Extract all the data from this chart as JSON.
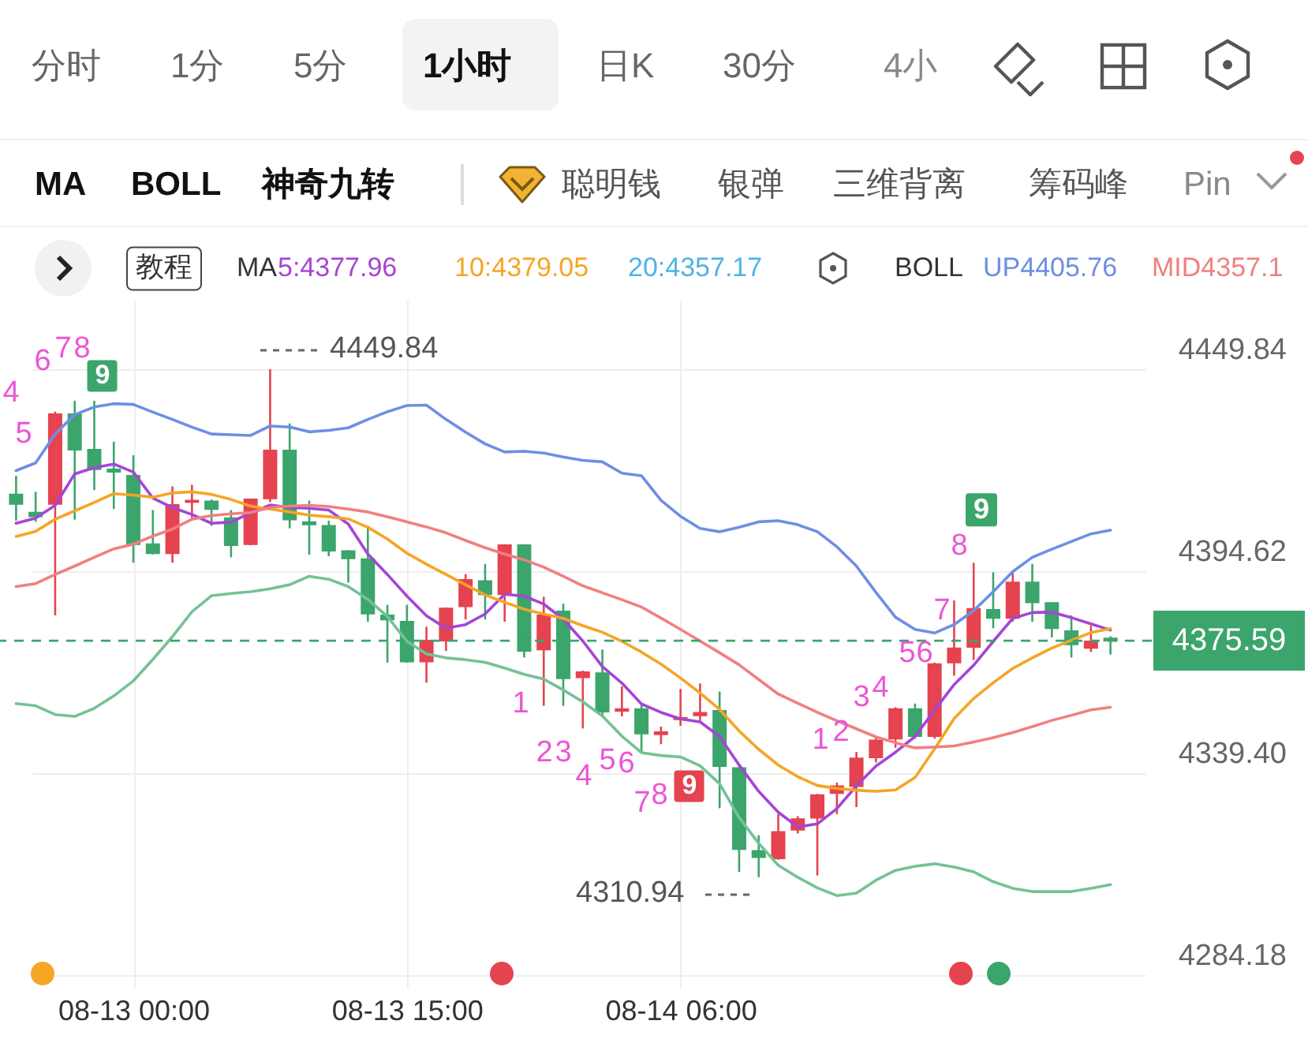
{
  "chart_data": {
    "type": "candlestick",
    "categories": [
      null,
      null,
      null,
      null,
      null,
      null,
      "08-13 00:00",
      null,
      null,
      null,
      null,
      null,
      null,
      null,
      null,
      null,
      null,
      null,
      null,
      null,
      "08-13 15:00",
      null,
      null,
      null,
      null,
      null,
      null,
      null,
      null,
      null,
      null,
      null,
      null,
      null,
      "08-14 06:00",
      null,
      null,
      null,
      null,
      null,
      null,
      null,
      null,
      null,
      null,
      null,
      null,
      null,
      null,
      null,
      null,
      null,
      null,
      null,
      null,
      null,
      null
    ],
    "ohlc": [
      [
        4415.6,
        4420.7,
        4408.4,
        4413.0
      ],
      [
        4410.6,
        4416.3,
        4408.1,
        4409.6
      ],
      [
        4413.0,
        4438.2,
        4382.5,
        4437.5
      ],
      [
        4437.5,
        4441.2,
        4408.7,
        4427.8
      ],
      [
        4427.8,
        4441.2,
        4416.8,
        4422.5
      ],
      [
        4422.4,
        4430.0,
        4411.6,
        4421.8
      ],
      [
        4420.7,
        4426.3,
        4396.9,
        4402.0
      ],
      [
        4402.0,
        4411.3,
        4399.2,
        4399.5
      ],
      [
        4399.5,
        4417.8,
        4396.9,
        4412.7
      ],
      [
        4413.5,
        4418.2,
        4409.1,
        4413.9
      ],
      [
        4413.7,
        4414.2,
        4407.0,
        4411.6
      ],
      [
        4409.1,
        4411.3,
        4398.4,
        4401.7
      ],
      [
        4402.0,
        4414.5,
        4401.7,
        4414.2
      ],
      [
        4414.5,
        4449.84,
        4413.5,
        4427.6
      ],
      [
        4427.6,
        4435.0,
        4406.3,
        4408.7
      ],
      [
        4408.0,
        4413.9,
        4399.1,
        4407.4
      ],
      [
        4407.0,
        4408.4,
        4398.7,
        4400.2
      ],
      [
        4400.1,
        4400.4,
        4391.5,
        4398.1
      ],
      [
        4397.9,
        4407.0,
        4380.8,
        4383.0
      ],
      [
        4382.5,
        4385.4,
        4369.6,
        4381.4
      ],
      [
        4380.8,
        4385.4,
        4369.6,
        4369.9
      ],
      [
        4369.9,
        4379.4,
        4364.1,
        4375.6
      ],
      [
        4375.6,
        4384.7,
        4372.8,
        4384.4
      ],
      [
        4385.0,
        4393.8,
        4381.4,
        4392.2
      ],
      [
        4391.9,
        4396.6,
        4381.4,
        4388.3
      ],
      [
        4388.3,
        4402.0,
        4380.8,
        4401.7
      ],
      [
        4401.7,
        4402.0,
        4371.0,
        4372.8
      ],
      [
        4373.2,
        4387.6,
        4357.8,
        4382.5
      ],
      [
        4383.6,
        4385.7,
        4357.8,
        4365.3
      ],
      [
        4365.6,
        4367.4,
        4351.6,
        4367.0
      ],
      [
        4366.7,
        4373.2,
        4355.2,
        4356.2
      ],
      [
        4356.4,
        4363.1,
        4354.9,
        4356.9
      ],
      [
        4356.9,
        4358.1,
        4344.9,
        4350.2
      ],
      [
        4350.0,
        4352.1,
        4347.3,
        4350.6
      ],
      [
        4354.1,
        4362.4,
        4352.3,
        4354.5
      ],
      [
        4355.2,
        4363.9,
        4353.1,
        4355.9
      ],
      [
        4356.4,
        4361.7,
        4329.8,
        4341.3
      ],
      [
        4340.8,
        4341.1,
        4312.4,
        4318.6
      ],
      [
        4318.1,
        4322.4,
        4310.94,
        4316.4
      ],
      [
        4316.1,
        4328.2,
        4315.7,
        4323.3
      ],
      [
        4323.9,
        4327.6,
        4322.9,
        4326.8
      ],
      [
        4327.2,
        4333.7,
        4311.4,
        4333.4
      ],
      [
        4333.9,
        4336.8,
        4328.2,
        4335.8
      ],
      [
        4335.8,
        4345.2,
        4330.1,
        4343.4
      ],
      [
        4343.7,
        4349.5,
        4342.3,
        4348.3
      ],
      [
        4348.8,
        4357.4,
        4346.3,
        4356.9
      ],
      [
        4356.9,
        4358.4,
        4348.8,
        4349.5
      ],
      [
        4349.5,
        4369.6,
        4348.8,
        4369.2
      ],
      [
        4369.6,
        4386.6,
        4366.0,
        4373.5
      ],
      [
        4373.9,
        4396.9,
        4370.3,
        4384.3
      ],
      [
        4384.0,
        4394.3,
        4379.0,
        4381.8
      ],
      [
        4381.8,
        4394.3,
        4380.8,
        4391.5
      ],
      [
        4391.5,
        4396.6,
        4380.8,
        4386.1
      ],
      [
        4385.9,
        4386.1,
        4376.5,
        4379.0
      ],
      [
        4378.2,
        4382.5,
        4371.0,
        4374.6
      ],
      [
        4373.6,
        4379.7,
        4372.5,
        4375.4
      ],
      [
        4376.2,
        4376.8,
        4371.8,
        4375.59
      ]
    ],
    "colors": [
      "#3ba56c",
      "#3ba56c",
      "#e5434f",
      "#3ba56c",
      "#3ba56c",
      "#3ba56c",
      "#3ba56c",
      "#3ba56c",
      "#e5434f",
      "#e5434f",
      "#3ba56c",
      "#3ba56c",
      "#e5434f",
      "#e5434f",
      "#3ba56c",
      "#3ba56c",
      "#3ba56c",
      "#3ba56c",
      "#3ba56c",
      "#3ba56c",
      "#3ba56c",
      "#e5434f",
      "#e5434f",
      "#e5434f",
      "#3ba56c",
      "#e5434f",
      "#3ba56c",
      "#e5434f",
      "#3ba56c",
      "#e5434f",
      "#3ba56c",
      "#e5434f",
      "#3ba56c",
      "#e5434f",
      "#e5434f",
      "#e5434f",
      "#3ba56c",
      "#3ba56c",
      "#3ba56c",
      "#e5434f",
      "#e5434f",
      "#e5434f",
      "#e5434f",
      "#e5434f",
      "#e5434f",
      "#e5434f",
      "#3ba56c",
      "#e5434f",
      "#e5434f",
      "#e5434f",
      "#3ba56c",
      "#e5434f",
      "#3ba56c",
      "#3ba56c",
      "#3ba56c",
      "#e5434f",
      "#3ba56c"
    ],
    "series": [
      {
        "name": "5:4377.96",
        "color": "#a545d6",
        "type": "line",
        "values": [
          4407.7,
          4409.1,
          4412.6,
          4421.2,
          4422.9,
          4423.9,
          4421.7,
          4414.6,
          4412.0,
          4410.1,
          4407.7,
          4408.0,
          4410.6,
          4412.7,
          4412.0,
          4411.8,
          4411.3,
          4407.5,
          4399.3,
          4393.7,
          4387.8,
          4382.4,
          4379.0,
          4380.0,
          4382.9,
          4388.3,
          4387.8,
          4385.6,
          4381.5,
          4375.5,
          4368.5,
          4364.0,
          4358.3,
          4356.0,
          4354.2,
          4353.4,
          4349.4,
          4341.6,
          4334.4,
          4328.7,
          4324.7,
          4325.5,
          4329.7,
          4335.9,
          4341.3,
          4345.1,
          4349.4,
          4356.6,
          4363.6,
          4368.9,
          4375.4,
          4381.7,
          4383.3,
          4383.4,
          4381.9,
          4380.2,
          4378.5
        ]
      },
      {
        "name": "10:4379.05",
        "color": "#f5a524",
        "type": "line",
        "values": [
          4404.1,
          4405.5,
          4408.8,
          4411.1,
          4413.4,
          4415.8,
          4415.4,
          4414.8,
          4416.0,
          4416.3,
          4415.6,
          4414.2,
          4412.4,
          4411.6,
          4410.8,
          4409.9,
          4409.5,
          4408.9,
          4406.6,
          4403.4,
          4399.5,
          4396.5,
          4393.7,
          4390.9,
          4388.1,
          4386.1,
          4384.2,
          4382.9,
          4381.7,
          4379.7,
          4377.9,
          4375.4,
          4372.5,
          4369.2,
          4365.4,
          4361.3,
          4356.8,
          4350.9,
          4345.9,
          4341.6,
          4338.4,
          4336.0,
          4335.2,
          4334.7,
          4334.4,
          4334.8,
          4338.2,
          4346.0,
          4354.3,
          4359.8,
          4364.1,
          4368.0,
          4370.9,
          4373.6,
          4375.7,
          4377.8,
          4378.9
        ]
      },
      {
        "name": "UP4405.76",
        "color": "#6d8fe3",
        "type": "line",
        "values": [
          4422.1,
          4424.2,
          4432.1,
          4437.4,
          4439.5,
          4440.4,
          4440.2,
          4438.1,
          4436.1,
          4434.0,
          4432.1,
          4431.9,
          4431.7,
          4434.3,
          4434.0,
          4432.7,
          4433.1,
          4433.8,
          4436.1,
          4438.2,
          4439.9,
          4440.0,
          4436.1,
          4432.6,
          4429.4,
          4427.2,
          4427.4,
          4426.9,
          4425.8,
          4424.9,
          4424.5,
          4421.4,
          4420.7,
          4414.0,
          4409.6,
          4406.3,
          4405.4,
          4406.6,
          4408.1,
          4408.4,
          4407.3,
          4405.4,
          4401.3,
          4396.0,
          4388.8,
          4382.0,
          4378.7,
          4377.7,
          4380.0,
          4383.8,
          4389.0,
          4394.5,
          4398.4,
          4400.6,
          4402.7,
          4404.8,
          4405.8
        ]
      },
      {
        "name": "MID4357.1",
        "color": "#f08080",
        "type": "line",
        "values": [
          4390.4,
          4391.2,
          4393.7,
          4396.0,
          4398.4,
          4400.7,
          4402.0,
          4404.2,
          4406.1,
          4408.8,
          4409.8,
          4410.3,
          4410.6,
          4412.0,
          4412.4,
          4412.6,
          4412.3,
          4411.6,
          4410.8,
          4409.5,
          4408.1,
          4406.7,
          4405.1,
          4403.0,
          4401.0,
          4399.3,
          4397.7,
          4395.7,
          4393.2,
          4390.6,
          4388.7,
          4386.8,
          4384.8,
          4381.8,
          4378.7,
          4375.5,
          4372.3,
          4369.0,
          4365.0,
          4361.0,
          4358.5,
          4356.0,
          4353.7,
          4351.5,
          4349.3,
          4347.7,
          4346.3,
          4346.5,
          4346.8,
          4347.9,
          4349.1,
          4350.5,
          4352.1,
          4353.8,
          4355.2,
          4356.7,
          4357.4
        ]
      },
      {
        "color": "#74c295",
        "type": "line",
        "values": [
          4358.4,
          4357.8,
          4355.4,
          4354.9,
          4357.1,
          4360.5,
          4364.6,
          4370.5,
          4376.7,
          4383.5,
          4387.9,
          4388.5,
          4389.0,
          4389.8,
          4390.9,
          4393.2,
          4392.4,
          4390.4,
          4386.9,
          4382.2,
          4375.4,
          4372.0,
          4370.9,
          4370.4,
          4369.7,
          4368.1,
          4366.4,
          4365.1,
          4362.1,
          4358.9,
          4355.0,
          4349.5,
          4345.0,
          4344.2,
          4343.8,
          4341.4,
          4336.5,
          4327.2,
          4320.2,
          4314.2,
          4310.9,
          4308.0,
          4305.9,
          4306.6,
          4310.1,
          4312.8,
          4313.9,
          4314.6,
          4313.7,
          4312.4,
          4309.7,
          4307.9,
          4307.0,
          4307.0,
          4307.0,
          4307.9,
          4308.9
        ]
      }
    ],
    "ylim": [
      4280.7,
      4468.8
    ],
    "yticks": [
      4284.18,
      {
        "value": 4339.4,
        "label": "4339.40"
      },
      4394.62,
      4449.84
    ],
    "grid": true,
    "legend": "top",
    "ref_lines": [
      {
        "axis": "y",
        "value": 4375.59,
        "label": "4375.59",
        "color": "#3ba56c",
        "line_style": "dashed"
      }
    ],
    "annotations": [
      "分时",
      "1分",
      "5分",
      "1小时",
      "日K",
      "30分",
      "4小",
      "MA",
      "BOLL",
      "神奇九转",
      "聪明钱",
      "银弹",
      "三维背离",
      "筹码峰",
      "Pin",
      "教程",
      "MA",
      "20:4357.17",
      "BOLL",
      "4",
      "5",
      "6",
      "7",
      "8",
      "9",
      "1",
      "2",
      "3",
      "4",
      "5",
      "6",
      "7",
      "8",
      "9",
      "1",
      "2",
      "3",
      "4",
      "5",
      "6",
      "7",
      "8",
      "9",
      "4449.84",
      "4310.94"
    ]
  }
}
